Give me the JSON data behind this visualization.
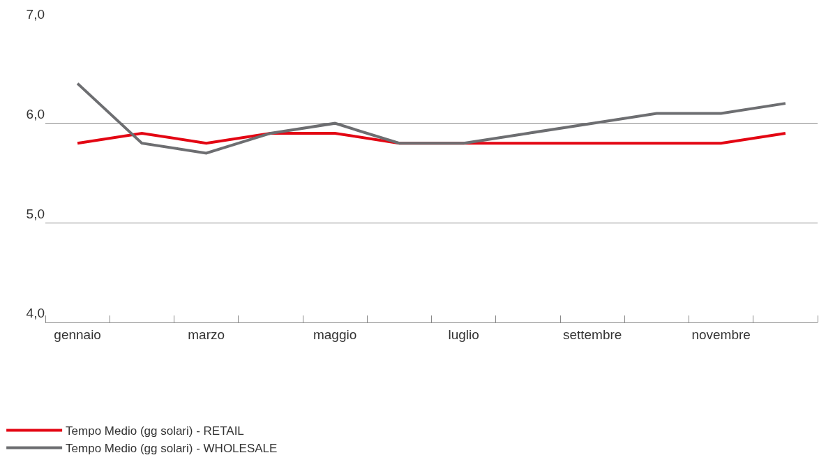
{
  "chart_data": {
    "type": "line",
    "categories": [
      "gennaio",
      null,
      "marzo",
      null,
      "maggio",
      null,
      "luglio",
      null,
      "settembre",
      null,
      "novembre",
      null
    ],
    "series": [
      {
        "name": "Tempo Medio (gg solari) - RETAIL",
        "color": "#e30613",
        "values": [
          5.8,
          5.9,
          5.8,
          5.9,
          5.9,
          5.8,
          5.8,
          5.8,
          5.8,
          5.8,
          5.8,
          5.9
        ]
      },
      {
        "name": "Tempo Medio (gg solari) - WHOLESALE",
        "color": "#6d6e71",
        "values": [
          6.4,
          5.8,
          5.7,
          5.9,
          6.0,
          5.8,
          5.8,
          5.9,
          6.0,
          6.1,
          6.1,
          6.2
        ]
      }
    ],
    "ylim": [
      4,
      7
    ],
    "yticks": [
      {
        "value": 4,
        "label": "4,0"
      },
      {
        "value": 5,
        "label": "5,0"
      },
      {
        "value": 6,
        "label": "6,0"
      },
      {
        "value": 7,
        "label": "7,0"
      }
    ],
    "grid": "y",
    "legend": "bottom left",
    "marker": "none",
    "line_style": "solid"
  }
}
